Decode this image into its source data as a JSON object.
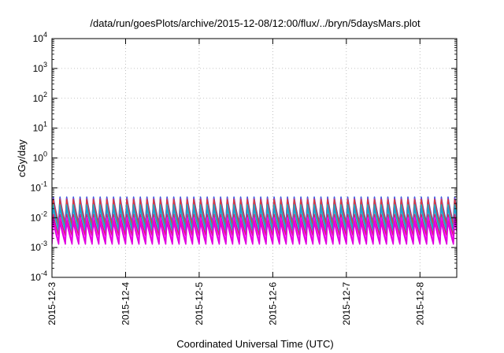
{
  "chart_data": {
    "type": "line",
    "title": "/data/run/goesPlots/archive/2015-12-08/12:00/flux/../bryn/5daysMars.plot",
    "xlabel": "Coordinated Universal Time (UTC)",
    "ylabel": "cGy/day",
    "y_scale": "log",
    "ylim": [
      0.0001,
      10000
    ],
    "y_ticks": [
      {
        "base": "10",
        "exp": "-4"
      },
      {
        "base": "10",
        "exp": "-3"
      },
      {
        "base": "10",
        "exp": "-2"
      },
      {
        "base": "10",
        "exp": "-1"
      },
      {
        "base": "10",
        "exp": "0"
      },
      {
        "base": "10",
        "exp": "1"
      },
      {
        "base": "10",
        "exp": "2"
      },
      {
        "base": "10",
        "exp": "3"
      },
      {
        "base": "10",
        "exp": "4"
      }
    ],
    "x_ticks": [
      "2015-12-3",
      "2015-12-4",
      "2015-12-5",
      "2015-12-6",
      "2015-12-7",
      "2015-12-8"
    ],
    "xlim": [
      "2015-12-03T00:00",
      "2015-12-08T12:00"
    ],
    "grid": true,
    "legend": "none",
    "cycles_per_day": 11,
    "series": [
      {
        "color": "#2a5fe0",
        "peak": 0.055,
        "trough": 0.0065
      },
      {
        "color": "#7b3fd0",
        "peak": 0.05,
        "trough": 0.006
      },
      {
        "color": "#e03a3a",
        "peak": 0.045,
        "trough": 0.0055
      },
      {
        "color": "#1fb5b5",
        "peak": 0.03,
        "trough": 0.004
      },
      {
        "color": "#20a0d0",
        "peak": 0.025,
        "trough": 0.0035
      },
      {
        "color": "#d02070",
        "peak": 0.014,
        "trough": 0.0025
      },
      {
        "color": "#ff00ff",
        "peak": 0.011,
        "trough": 0.0016
      },
      {
        "color": "#e000e0",
        "peak": 0.0085,
        "trough": 0.0013
      }
    ]
  }
}
